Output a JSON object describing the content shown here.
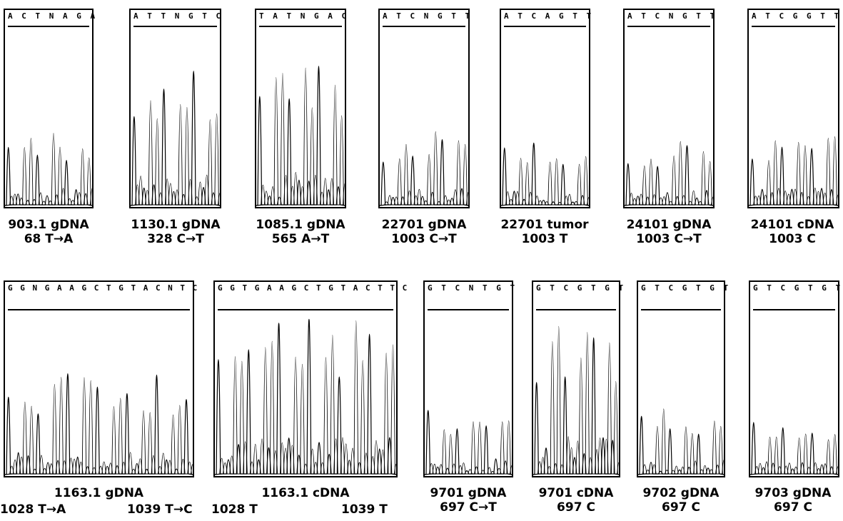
{
  "panels": [
    {
      "seq": "A C T N A G A",
      "name": "903.1 gDNA",
      "mut": "68 T→A"
    },
    {
      "seq": "A T T N G T C",
      "name": "1130.1 gDNA",
      "mut": "328 C→T"
    },
    {
      "seq": "T A T N G A C",
      "name": "1085.1 gDNA",
      "mut": "565 A→T"
    },
    {
      "seq": "A T C N G T T",
      "name": "22701 gDNA",
      "mut": "1003 C→T"
    },
    {
      "seq": "A T C A G T T",
      "name": "22701 tumor",
      "mut": "1003 T"
    },
    {
      "seq": "A T C N G T T",
      "name": "24101 gDNA",
      "mut": "1003 C→T"
    },
    {
      "seq": "A T C G G T T",
      "name": "24101 cDNA",
      "mut": "1003 C"
    },
    {
      "seq": "G G N G A A G C T G T A C N T C",
      "name": "1163.1 gDNA",
      "mut_left": "1028 T→A",
      "mut_right": "1039 T→C"
    },
    {
      "seq": "G G T G A A G C T G T A C T T C",
      "name": "1163.1 cDNA",
      "mut_left": "1028 T",
      "mut_right": "1039 T"
    },
    {
      "seq": "G T C N T G T",
      "name": "9701 gDNA",
      "mut": "697 C→T"
    },
    {
      "seq": "G T C G T G T",
      "name": "9701 cDNA",
      "mut": "697 C"
    },
    {
      "seq": "G T C G T G T",
      "name": "9702 gDNA",
      "mut": "697 C"
    },
    {
      "seq": "G T C G T G T",
      "name": "9703 gDNA",
      "mut": "697 C"
    }
  ]
}
